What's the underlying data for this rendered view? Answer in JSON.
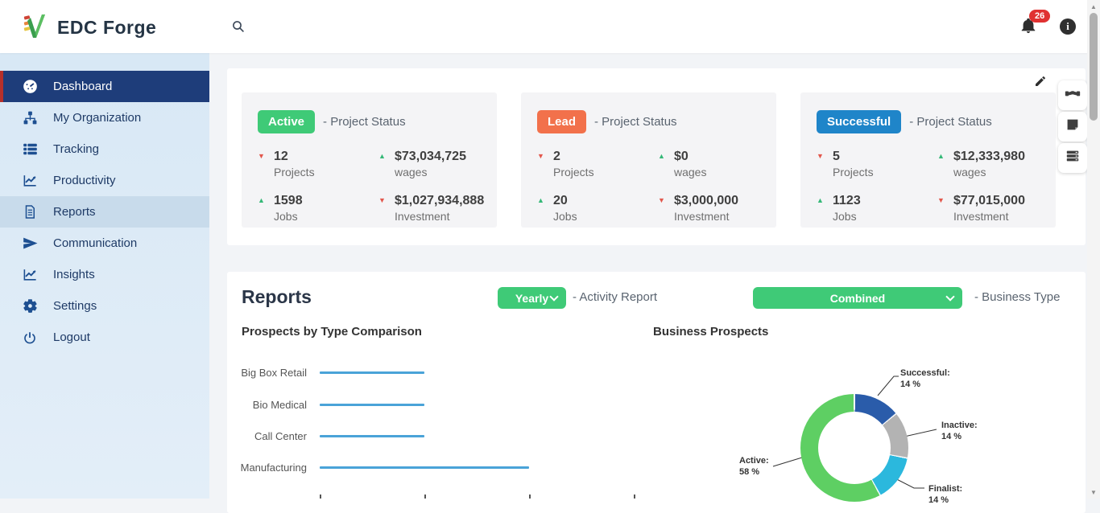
{
  "app": {
    "brand": "EDC Forge",
    "accent_green": "#3fca77",
    "navy": "#1e3d7a"
  },
  "header": {
    "notification_count": "26",
    "info_glyph": "i"
  },
  "sidebar": {
    "items": [
      {
        "label": "Dashboard"
      },
      {
        "label": "My Organization"
      },
      {
        "label": "Tracking"
      },
      {
        "label": "Productivity"
      },
      {
        "label": "Reports"
      },
      {
        "label": "Communication"
      },
      {
        "label": "Insights"
      },
      {
        "label": "Settings"
      },
      {
        "label": "Logout"
      }
    ]
  },
  "toolbar_icons": [
    "handshake-icon",
    "note-icon",
    "records-icon"
  ],
  "status_cards": [
    {
      "badge": "Active",
      "color": "#3fca77",
      "suffix": "- Project Status",
      "stats": [
        {
          "trend": "down",
          "value": "12",
          "label": "Projects"
        },
        {
          "trend": "up",
          "value": "$73,034,725",
          "label": "wages"
        },
        {
          "trend": "up",
          "value": "1598",
          "label": "Jobs"
        },
        {
          "trend": "down",
          "value": "$1,027,934,888",
          "label": "Investment"
        }
      ]
    },
    {
      "badge": "Lead",
      "color": "#f2714b",
      "suffix": "- Project Status",
      "stats": [
        {
          "trend": "down",
          "value": "2",
          "label": "Projects"
        },
        {
          "trend": "up",
          "value": "$0",
          "label": "wages"
        },
        {
          "trend": "up",
          "value": "20",
          "label": "Jobs"
        },
        {
          "trend": "down",
          "value": "$3,000,000",
          "label": "Investment"
        }
      ]
    },
    {
      "badge": "Successful",
      "color": "#1f85c9",
      "suffix": "- Project Status",
      "stats": [
        {
          "trend": "down",
          "value": "5",
          "label": "Projects"
        },
        {
          "trend": "up",
          "value": "$12,333,980",
          "label": "wages"
        },
        {
          "trend": "up",
          "value": "1123",
          "label": "Jobs"
        },
        {
          "trend": "down",
          "value": "$77,015,000",
          "label": "Investment"
        }
      ]
    }
  ],
  "reports": {
    "title": "Reports",
    "activity": {
      "value": "Yearly",
      "label": "- Activity Report"
    },
    "business": {
      "value": "Combined",
      "label": "- Business Type"
    }
  },
  "chart_data": [
    {
      "type": "bar",
      "title": "Prospects by Type Comparison",
      "orientation": "horizontal",
      "categories": [
        "Big Box Retail",
        "Bio Medical",
        "Call Center",
        "Manufacturing"
      ],
      "values": [
        1,
        1,
        1,
        2
      ],
      "xlim": [
        0,
        3
      ],
      "bar_color": "#4aa3d8",
      "grid": false
    },
    {
      "type": "pie",
      "subtype": "donut",
      "title": "Business Prospects",
      "slices": [
        {
          "label": "Successful",
          "display": "Successful:",
          "pct": "14 %",
          "value": 14,
          "color": "#2a5caa"
        },
        {
          "label": "Inactive",
          "display": "Inactive:",
          "pct": "14 %",
          "value": 14,
          "color": "#b3b3b3"
        },
        {
          "label": "Finalist",
          "display": "Finalist:",
          "pct": "14 %",
          "value": 14,
          "color": "#2bb8dd"
        },
        {
          "label": "Active",
          "display": "Active:",
          "pct": "58 %",
          "value": 58,
          "color": "#5ecf63"
        }
      ],
      "legend": "callout-labels"
    }
  ]
}
